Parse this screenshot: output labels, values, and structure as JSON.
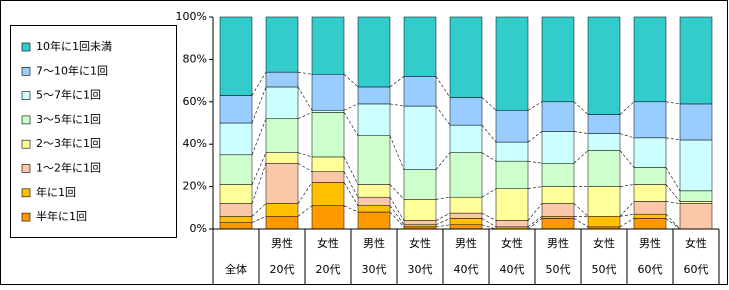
{
  "chart_data": {
    "type": "stacked_bar_100",
    "categories": [
      [
        "全体"
      ],
      [
        "男性",
        "20代"
      ],
      [
        "女性",
        "20代"
      ],
      [
        "男性",
        "30代"
      ],
      [
        "女性",
        "30代"
      ],
      [
        "男性",
        "40代"
      ],
      [
        "女性",
        "40代"
      ],
      [
        "男性",
        "50代"
      ],
      [
        "女性",
        "50代"
      ],
      [
        "男性",
        "60代"
      ],
      [
        "女性",
        "60代"
      ]
    ],
    "series": [
      {
        "name": "半年に1回",
        "color": "#ff9900",
        "values": [
          3,
          6,
          11,
          8,
          1,
          2,
          0,
          5,
          1,
          5,
          0
        ]
      },
      {
        "name": "年に1回",
        "color": "#ffc000",
        "values": [
          3,
          6,
          11,
          3,
          1,
          3,
          1,
          1,
          5,
          2,
          0
        ]
      },
      {
        "name": "1～2年に1回",
        "color": "#fac8a8",
        "values": [
          6,
          19,
          5,
          4,
          2,
          2.5,
          3,
          6,
          0,
          6,
          12
        ]
      },
      {
        "name": "2～3年に1回",
        "color": "#ffff99",
        "values": [
          9,
          5,
          7,
          6,
          10,
          7.5,
          15,
          8,
          14,
          8,
          1
        ]
      },
      {
        "name": "3～5年に1回",
        "color": "#ccffcc",
        "values": [
          14,
          16,
          21,
          23,
          14,
          21,
          13,
          11,
          17,
          8,
          5
        ]
      },
      {
        "name": "5～7年に1回",
        "color": "#ccffff",
        "values": [
          15,
          15,
          1,
          15,
          30,
          13,
          9,
          15,
          8,
          14,
          24
        ]
      },
      {
        "name": "7～10年に1回",
        "color": "#99ccff",
        "values": [
          13,
          7,
          17,
          8,
          14,
          13,
          15,
          14,
          9,
          17,
          17
        ]
      },
      {
        "name": "10年に1回未満",
        "color": "#33cccc",
        "values": [
          37,
          26,
          27,
          33,
          28,
          38,
          44,
          40,
          46,
          40,
          41
        ]
      }
    ],
    "ylim": [
      0,
      100
    ],
    "yticks": [
      {
        "value": 0,
        "label": "0%"
      },
      {
        "value": 20,
        "label": "20%"
      },
      {
        "value": 40,
        "label": "40%"
      },
      {
        "value": 60,
        "label": "60%"
      },
      {
        "value": 80,
        "label": "80%"
      },
      {
        "value": 100,
        "label": "100%"
      }
    ]
  }
}
